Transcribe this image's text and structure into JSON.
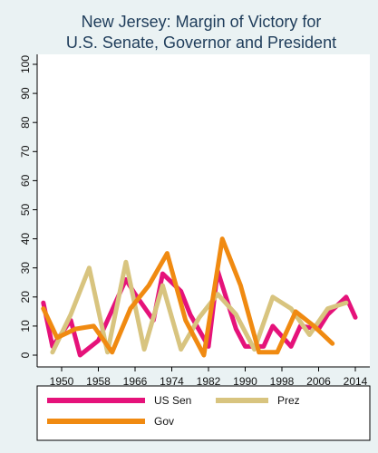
{
  "chart_data": {
    "type": "line",
    "title": [
      "New Jersey: Margin of Victory for",
      "U.S. Senate, Governor and President"
    ],
    "xlabel": "",
    "ylabel": "",
    "xlim": [
      1944,
      2016
    ],
    "ylim": [
      0,
      100
    ],
    "x_ticks": [
      1950,
      1958,
      1966,
      1974,
      1982,
      1990,
      1998,
      2006,
      2014
    ],
    "y_ticks": [
      0,
      10,
      20,
      30,
      40,
      50,
      60,
      70,
      80,
      90,
      100
    ],
    "grid": false,
    "legend_position": "bottom",
    "series": [
      {
        "name": "US Sen",
        "color": "#e5127a",
        "x": [
          1946,
          1948,
          1952,
          1954,
          1958,
          1960,
          1964,
          1966,
          1970,
          1972,
          1976,
          1978,
          1982,
          1984,
          1988,
          1990,
          1994,
          1996,
          2000,
          2002,
          2006,
          2008,
          2012,
          2014
        ],
        "y": [
          18,
          3,
          12,
          0,
          5,
          12,
          26,
          21,
          12,
          28,
          22,
          14,
          3,
          29,
          9,
          3,
          3,
          10,
          3,
          10,
          9,
          14,
          20,
          13
        ]
      },
      {
        "name": "Prez",
        "color": "#d8c47f",
        "x": [
          1948,
          1952,
          1956,
          1960,
          1964,
          1968,
          1972,
          1976,
          1980,
          1984,
          1988,
          1992,
          1996,
          2000,
          2004,
          2008,
          2012
        ],
        "y": [
          1,
          14,
          30,
          1,
          32,
          2,
          24,
          2,
          13,
          21,
          14,
          2,
          20,
          16,
          7,
          16,
          18
        ]
      },
      {
        "name": "Gov",
        "color": "#f08a11",
        "x": [
          1946,
          1949,
          1953,
          1957,
          1961,
          1965,
          1969,
          1973,
          1977,
          1981,
          1985,
          1989,
          1993,
          1997,
          2001,
          2005,
          2009
        ],
        "y": [
          16,
          6,
          9,
          10,
          1,
          16,
          24,
          35,
          12,
          0,
          40,
          24,
          1,
          1,
          15,
          10,
          4
        ]
      }
    ]
  }
}
